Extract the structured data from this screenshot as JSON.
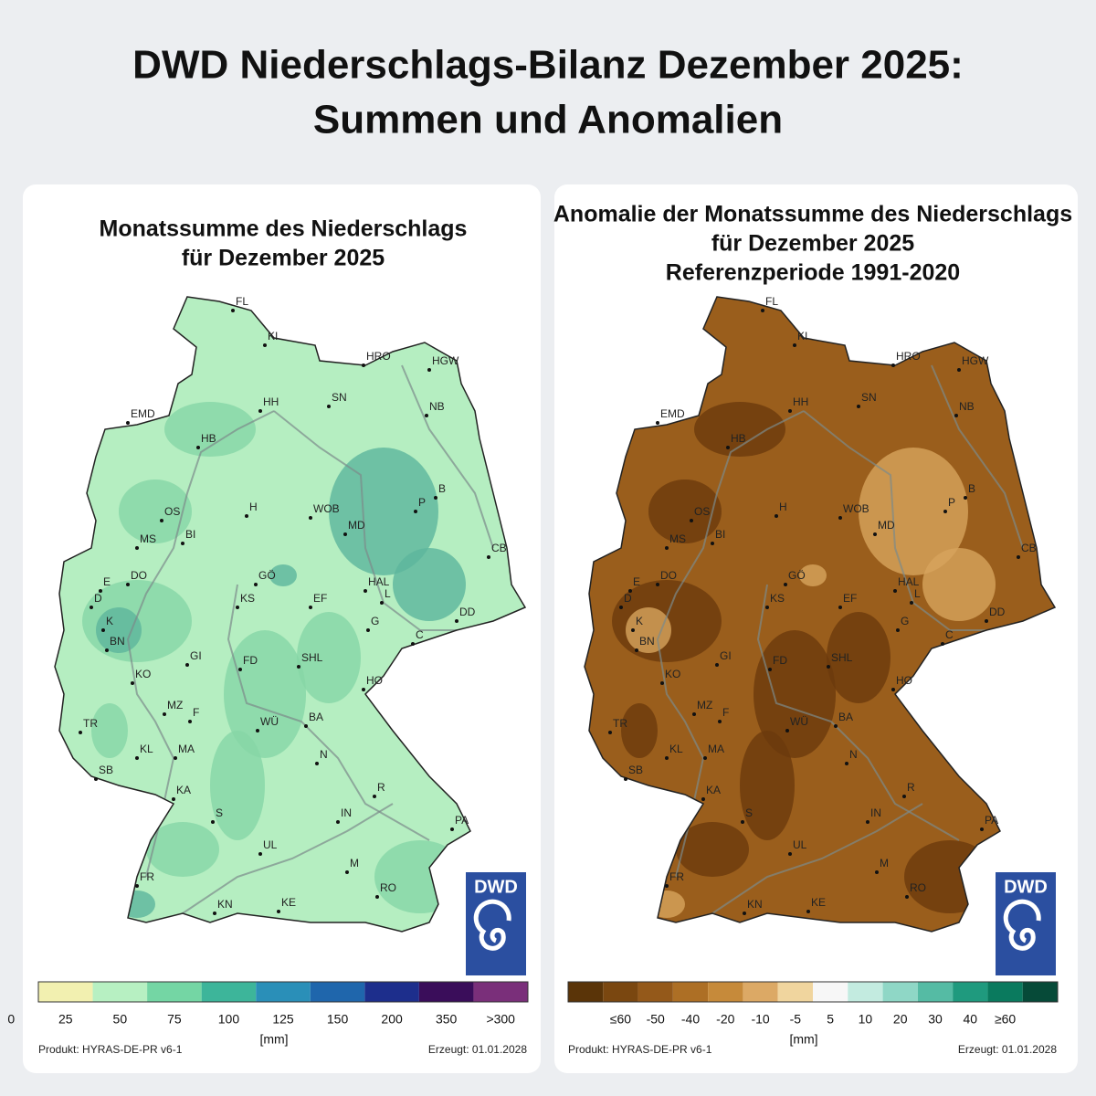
{
  "title": [
    "DWD Niederschlags-Bilanz Dezember 2025:",
    "Summen und Anomalien"
  ],
  "panels": [
    {
      "title": [
        "Monatssumme des Niederschlags",
        "für Dezember 2025"
      ],
      "map_colors": [
        "#b5eec1",
        "#86d6a6",
        "#5cb59c"
      ],
      "cities": [
        "FL",
        "KI",
        "HRO",
        "HGW",
        "HH",
        "SN",
        "NB",
        "EMD",
        "HB",
        "H",
        "WOB",
        "P",
        "B",
        "OS",
        "MS",
        "BI",
        "MD",
        "CB",
        "E",
        "DO",
        "GÖ",
        "HAL",
        "L",
        "D",
        "KS",
        "EF",
        "DD",
        "K",
        "G",
        "C",
        "BN",
        "GI",
        "FD",
        "SHL",
        "KO",
        "HO",
        "MZ",
        "F",
        "WÜ",
        "BA",
        "TR",
        "KL",
        "MA",
        "N",
        "SB",
        "KA",
        "R",
        "S",
        "IN",
        "PA",
        "UL",
        "FR",
        "M",
        "RO",
        "KN",
        "KE"
      ],
      "legend": {
        "colors": [
          "#f2f0b0",
          "#b7f0c2",
          "#74d6a4",
          "#3db59a",
          "#2a8fb8",
          "#1f66ac",
          "#1d2e8c",
          "#3a0d5a",
          "#7a2f7a"
        ],
        "labels": [
          "0",
          "25",
          "50",
          "75",
          "100",
          "125",
          "150",
          "200",
          "350",
          ">300"
        ]
      },
      "unit": "[mm]",
      "product": "Produkt: HYRAS-DE-PR v6-1",
      "created": "Erzeugt: 01.01.2028",
      "logo": "DWD"
    },
    {
      "title": [
        "Anomalie der Monatssumme des Niederschlags",
        "für Dezember 2025",
        "Referenzperiode 1991-2020"
      ],
      "map_colors": [
        "#9a5e1c",
        "#6b3a0c",
        "#d7a45c"
      ],
      "cities": [
        "FL",
        "KI",
        "HRO",
        "HGW",
        "HH",
        "SN",
        "NB",
        "EMD",
        "HB",
        "H",
        "WOB",
        "P",
        "B",
        "OS",
        "MS",
        "BI",
        "MD",
        "CB",
        "E",
        "DO",
        "GÖ",
        "HAL",
        "L",
        "D",
        "KS",
        "EF",
        "DD",
        "K",
        "G",
        "C",
        "BN",
        "GI",
        "FD",
        "SHL",
        "KO",
        "HO",
        "MZ",
        "F",
        "WÜ",
        "BA",
        "TR",
        "KL",
        "MA",
        "N",
        "SB",
        "KA",
        "R",
        "S",
        "IN",
        "PA",
        "UL",
        "FR",
        "M",
        "RO",
        "KN",
        "KE"
      ],
      "legend": {
        "colors": [
          "#5a3408",
          "#7a4710",
          "#94591a",
          "#ad6f25",
          "#c68a3a",
          "#dca965",
          "#f0d59e",
          "#f7f7f7",
          "#c3ebe0",
          "#8fd7c6",
          "#55bba4",
          "#1f9a7e",
          "#0a7a5e",
          "#064a38"
        ],
        "labels": [
          "≤60",
          "-50",
          "-40",
          "-20",
          "-10",
          "-5",
          "5",
          "10",
          "20",
          "30",
          "40",
          "≥60"
        ]
      },
      "unit": "[mm]",
      "product": "Produkt: HYRAS-DE-PR v6-1",
      "created": "Erzeugt: 01.01.2028",
      "logo": "DWD"
    }
  ]
}
